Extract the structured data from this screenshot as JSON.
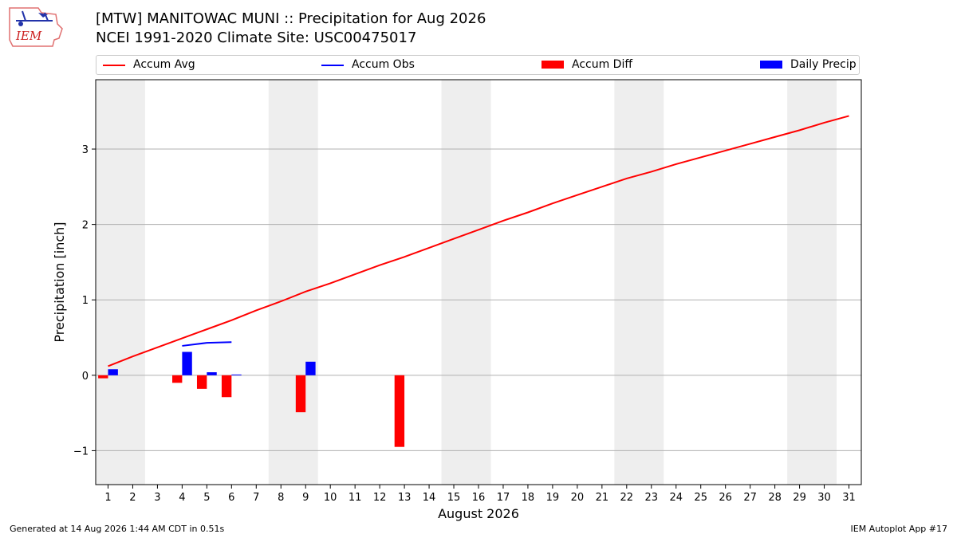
{
  "title_line1": "[MTW] MANITOWAC MUNI :: Precipitation for Aug 2026",
  "title_line2": "NCEI 1991-2020 Climate Site: USC00475017",
  "logo_text": "IEM",
  "footer_left": "Generated at 14 Aug 2026 1:44 AM CDT in 0.51s",
  "footer_right": "IEM Autoplot App #17",
  "colors": {
    "avg": "#ff0000",
    "obs": "#0000ff",
    "diff": "#ff0000",
    "daily": "#0000ff",
    "weekend": "#eeeeee"
  },
  "chart_data": {
    "type": "bar",
    "xlabel": "August 2026",
    "ylabel": "Precipitation [inch]",
    "xlim": [
      0.5,
      31.5
    ],
    "ylim": [
      -1.45,
      3.92
    ],
    "yticks": [
      -1,
      0,
      1,
      2,
      3
    ],
    "ytick_labels": [
      "−1",
      "0",
      "1",
      "2",
      "3"
    ],
    "xticks": [
      1,
      2,
      3,
      4,
      5,
      6,
      7,
      8,
      9,
      10,
      11,
      12,
      13,
      14,
      15,
      16,
      17,
      18,
      19,
      20,
      21,
      22,
      23,
      24,
      25,
      26,
      27,
      28,
      29,
      30,
      31
    ],
    "grid": true,
    "legend_placement": "top",
    "shaded_days": [
      [
        0.5,
        2.5
      ],
      [
        7.5,
        9.5
      ],
      [
        14.5,
        16.5
      ],
      [
        21.5,
        23.5
      ],
      [
        28.5,
        30.5
      ]
    ],
    "legend": [
      {
        "label": "Accum Avg",
        "kind": "line",
        "color": "#ff0000"
      },
      {
        "label": "Accum Obs",
        "kind": "line",
        "color": "#0000ff"
      },
      {
        "label": "Accum Diff",
        "kind": "bar",
        "color": "#ff0000"
      },
      {
        "label": "Daily Precip",
        "kind": "bar",
        "color": "#0000ff"
      }
    ],
    "series": [
      {
        "name": "Accum Avg",
        "type": "line",
        "x": [
          1,
          2,
          3,
          4,
          5,
          6,
          7,
          8,
          9,
          10,
          11,
          12,
          13,
          14,
          15,
          16,
          17,
          18,
          19,
          20,
          21,
          22,
          23,
          24,
          25,
          26,
          27,
          28,
          29,
          30,
          31
        ],
        "values": [
          0.12,
          0.25,
          0.37,
          0.49,
          0.61,
          0.73,
          0.86,
          0.98,
          1.11,
          1.22,
          1.34,
          1.46,
          1.57,
          1.69,
          1.81,
          1.93,
          2.05,
          2.16,
          2.28,
          2.39,
          2.5,
          2.61,
          2.7,
          2.8,
          2.89,
          2.98,
          3.07,
          3.16,
          3.25,
          3.35,
          3.44
        ]
      },
      {
        "name": "Accum Obs",
        "type": "line",
        "x": [
          4,
          5,
          6
        ],
        "values": [
          0.39,
          0.43,
          0.44
        ]
      },
      {
        "name": "Accum Diff",
        "type": "bar",
        "x": [
          1,
          4,
          5,
          6,
          9,
          13
        ],
        "values": [
          -0.04,
          -0.1,
          -0.18,
          -0.29,
          -0.49,
          -0.95
        ]
      },
      {
        "name": "Daily Precip",
        "type": "bar",
        "x": [
          1,
          4,
          5,
          6,
          9
        ],
        "values": [
          0.08,
          0.31,
          0.04,
          0.01,
          0.18
        ]
      }
    ]
  }
}
